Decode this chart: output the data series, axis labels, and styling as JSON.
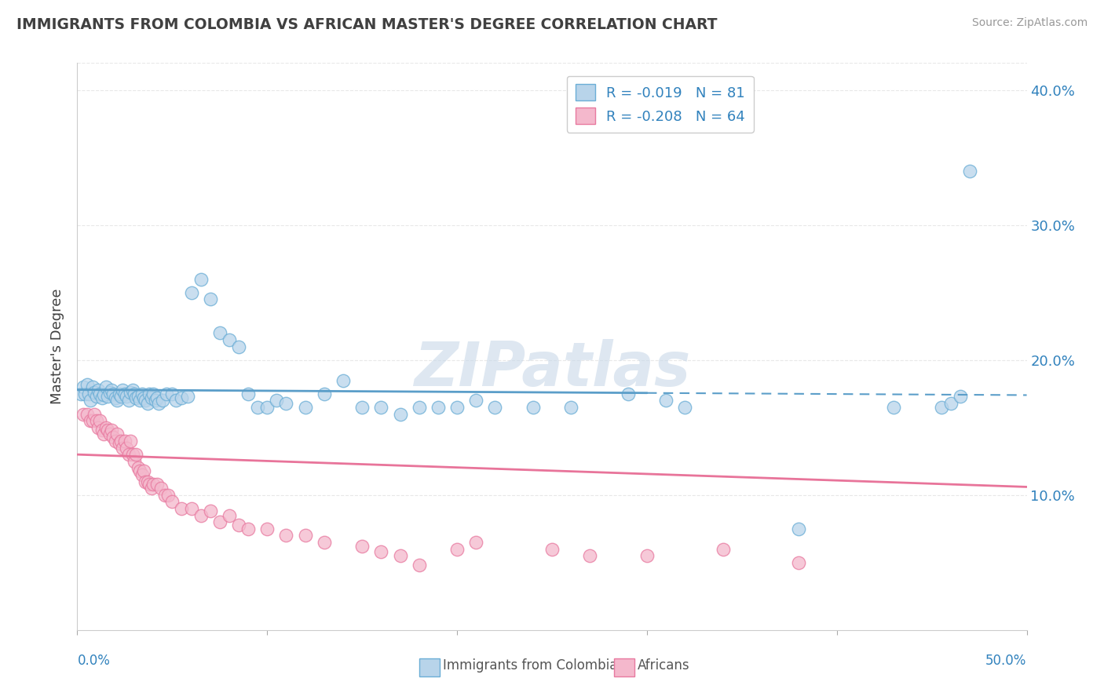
{
  "title": "IMMIGRANTS FROM COLOMBIA VS AFRICAN MASTER'S DEGREE CORRELATION CHART",
  "source": "Source: ZipAtlas.com",
  "ylabel": "Master's Degree",
  "xlim": [
    0.0,
    0.5
  ],
  "ylim": [
    0.0,
    0.42
  ],
  "ytick_positions": [
    0.1,
    0.2,
    0.3,
    0.4
  ],
  "right_ytick_labels": [
    "10.0%",
    "20.0%",
    "30.0%",
    "40.0%"
  ],
  "legend_R1": "R = -0.019",
  "legend_N1": "N = 81",
  "legend_R2": "R = -0.208",
  "legend_N2": "N = 64",
  "color_blue_fill": "#b8d4ea",
  "color_blue_edge": "#6baed6",
  "color_pink_fill": "#f4b8cc",
  "color_pink_edge": "#e87aa0",
  "color_blue_line": "#5b9ec9",
  "color_pink_line": "#e8749a",
  "color_text_blue": "#3182bd",
  "color_text_dark": "#404040",
  "color_grid": "#e8e8e8",
  "color_source": "#999999",
  "blue_line_solid_end": 0.3,
  "blue_line_intercept": 0.178,
  "blue_line_slope": -0.008,
  "pink_line_intercept": 0.13,
  "pink_line_slope": -0.048,
  "blue_x": [
    0.002,
    0.003,
    0.004,
    0.005,
    0.006,
    0.007,
    0.008,
    0.009,
    0.01,
    0.011,
    0.012,
    0.013,
    0.014,
    0.015,
    0.016,
    0.017,
    0.018,
    0.019,
    0.02,
    0.021,
    0.022,
    0.023,
    0.024,
    0.025,
    0.026,
    0.027,
    0.028,
    0.029,
    0.03,
    0.031,
    0.032,
    0.033,
    0.034,
    0.035,
    0.036,
    0.037,
    0.038,
    0.039,
    0.04,
    0.041,
    0.042,
    0.043,
    0.045,
    0.047,
    0.05,
    0.052,
    0.055,
    0.058,
    0.06,
    0.065,
    0.07,
    0.075,
    0.08,
    0.085,
    0.09,
    0.095,
    0.1,
    0.105,
    0.11,
    0.12,
    0.13,
    0.14,
    0.15,
    0.16,
    0.17,
    0.18,
    0.19,
    0.2,
    0.21,
    0.22,
    0.24,
    0.26,
    0.29,
    0.31,
    0.32,
    0.38,
    0.43,
    0.455,
    0.46,
    0.465,
    0.47
  ],
  "blue_y": [
    0.175,
    0.18,
    0.175,
    0.182,
    0.175,
    0.17,
    0.18,
    0.176,
    0.173,
    0.178,
    0.175,
    0.172,
    0.174,
    0.18,
    0.173,
    0.176,
    0.178,
    0.175,
    0.172,
    0.17,
    0.175,
    0.173,
    0.178,
    0.175,
    0.173,
    0.17,
    0.176,
    0.178,
    0.175,
    0.172,
    0.173,
    0.17,
    0.175,
    0.172,
    0.17,
    0.168,
    0.175,
    0.172,
    0.175,
    0.17,
    0.172,
    0.168,
    0.17,
    0.175,
    0.175,
    0.17,
    0.172,
    0.173,
    0.25,
    0.26,
    0.245,
    0.22,
    0.215,
    0.21,
    0.175,
    0.165,
    0.165,
    0.17,
    0.168,
    0.165,
    0.175,
    0.185,
    0.165,
    0.165,
    0.16,
    0.165,
    0.165,
    0.165,
    0.17,
    0.165,
    0.165,
    0.165,
    0.175,
    0.17,
    0.165,
    0.075,
    0.165,
    0.165,
    0.168,
    0.173,
    0.34
  ],
  "pink_x": [
    0.003,
    0.005,
    0.007,
    0.008,
    0.009,
    0.01,
    0.011,
    0.012,
    0.013,
    0.014,
    0.015,
    0.016,
    0.017,
    0.018,
    0.019,
    0.02,
    0.021,
    0.022,
    0.023,
    0.024,
    0.025,
    0.026,
    0.027,
    0.028,
    0.029,
    0.03,
    0.031,
    0.032,
    0.033,
    0.034,
    0.035,
    0.036,
    0.037,
    0.038,
    0.039,
    0.04,
    0.042,
    0.044,
    0.046,
    0.048,
    0.05,
    0.055,
    0.06,
    0.065,
    0.07,
    0.075,
    0.08,
    0.085,
    0.09,
    0.1,
    0.11,
    0.12,
    0.13,
    0.15,
    0.16,
    0.17,
    0.18,
    0.2,
    0.21,
    0.25,
    0.27,
    0.3,
    0.34,
    0.38
  ],
  "pink_y": [
    0.16,
    0.16,
    0.155,
    0.155,
    0.16,
    0.155,
    0.15,
    0.155,
    0.148,
    0.145,
    0.15,
    0.148,
    0.145,
    0.148,
    0.143,
    0.14,
    0.145,
    0.138,
    0.14,
    0.135,
    0.14,
    0.135,
    0.13,
    0.14,
    0.13,
    0.125,
    0.13,
    0.12,
    0.118,
    0.115,
    0.118,
    0.11,
    0.11,
    0.108,
    0.105,
    0.108,
    0.108,
    0.105,
    0.1,
    0.1,
    0.095,
    0.09,
    0.09,
    0.085,
    0.088,
    0.08,
    0.085,
    0.078,
    0.075,
    0.075,
    0.07,
    0.07,
    0.065,
    0.062,
    0.058,
    0.055,
    0.048,
    0.06,
    0.065,
    0.06,
    0.055,
    0.055,
    0.06,
    0.05
  ],
  "background_color": "#ffffff"
}
